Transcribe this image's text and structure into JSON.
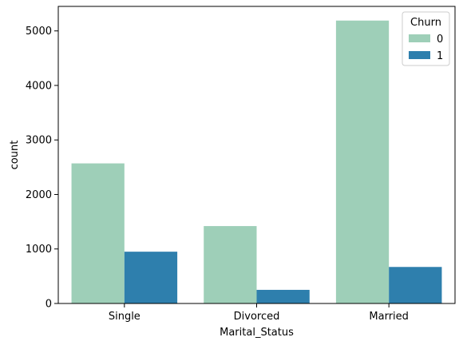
{
  "chart_data": {
    "type": "bar",
    "xlabel": "Marital_Status",
    "ylabel": "count",
    "categories": [
      "Single",
      "Divorced",
      "Married"
    ],
    "series": [
      {
        "name": "0",
        "values": [
          2570,
          1420,
          5190
        ],
        "color": "#9ecfb8"
      },
      {
        "name": "1",
        "values": [
          950,
          250,
          670
        ],
        "color": "#2e7fad"
      }
    ],
    "ylim": [
      0,
      5450
    ],
    "yticks": [
      0,
      1000,
      2000,
      3000,
      4000,
      5000
    ],
    "grid": false,
    "legend": {
      "title": "Churn",
      "placement": "top-right"
    }
  }
}
